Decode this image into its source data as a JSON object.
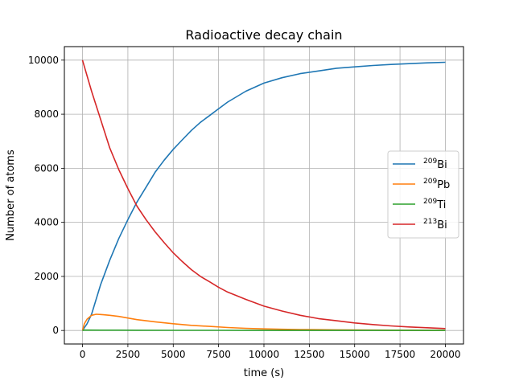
{
  "chart_data": {
    "type": "line",
    "title": "Radioactive decay chain",
    "xlabel": "time (s)",
    "ylabel": "Number of atoms",
    "xlim": [
      -1000,
      21000
    ],
    "ylim": [
      -500,
      10500
    ],
    "xticks": [
      0,
      2500,
      5000,
      7500,
      10000,
      12500,
      15000,
      17500,
      20000
    ],
    "yticks": [
      0,
      2000,
      4000,
      6000,
      8000,
      10000
    ],
    "grid": true,
    "legend_position": "right",
    "series": [
      {
        "name": "209Bi",
        "legend_mass": "209",
        "legend_symbol": "Bi",
        "color": "#1f77b4",
        "x": [
          0,
          250,
          500,
          1000,
          1500,
          2000,
          2500,
          3000,
          3500,
          4000,
          4500,
          5000,
          5500,
          6000,
          6500,
          7000,
          7500,
          8000,
          9000,
          10000,
          11000,
          12000,
          13000,
          14000,
          15000,
          16000,
          17000,
          18000,
          19000,
          20000
        ],
        "y": [
          0,
          250,
          600,
          1700,
          2600,
          3400,
          4100,
          4750,
          5300,
          5850,
          6300,
          6700,
          7050,
          7400,
          7700,
          7950,
          8200,
          8450,
          8850,
          9150,
          9350,
          9500,
          9600,
          9700,
          9750,
          9800,
          9840,
          9870,
          9900,
          9920
        ]
      },
      {
        "name": "209Pb",
        "legend_mass": "209",
        "legend_symbol": "Pb",
        "color": "#ff7f0e",
        "x": [
          0,
          100,
          250,
          500,
          750,
          1000,
          1500,
          2000,
          2500,
          3000,
          3500,
          4000,
          5000,
          6000,
          7000,
          8000,
          9000,
          10000,
          11000,
          12000,
          13000,
          14000,
          15000,
          16000,
          17000,
          18000,
          19000,
          20000
        ],
        "y": [
          0,
          250,
          420,
          560,
          600,
          590,
          560,
          520,
          460,
          400,
          360,
          320,
          250,
          190,
          150,
          110,
          80,
          60,
          45,
          35,
          28,
          22,
          18,
          15,
          12,
          10,
          8,
          6
        ]
      },
      {
        "name": "209Ti",
        "legend_mass": "209",
        "legend_symbol": "Ti",
        "color": "#2ca02c",
        "x": [
          0,
          100,
          1000,
          2000,
          3000,
          5000,
          7500,
          10000,
          15000,
          20000
        ],
        "y": [
          0,
          15,
          12,
          10,
          8,
          6,
          4,
          3,
          2,
          1
        ]
      },
      {
        "name": "213Bi",
        "legend_mass": "213",
        "legend_symbol": "Bi",
        "color": "#d62728",
        "x": [
          0,
          500,
          1000,
          1500,
          2000,
          2500,
          3000,
          3500,
          4000,
          4500,
          5000,
          5500,
          6000,
          6500,
          7000,
          7500,
          8000,
          9000,
          10000,
          11000,
          12000,
          13000,
          14000,
          15000,
          16000,
          17000,
          18000,
          19000,
          20000
        ],
        "y": [
          10000,
          8850,
          7800,
          6750,
          5950,
          5250,
          4600,
          4100,
          3650,
          3250,
          2870,
          2550,
          2250,
          2000,
          1800,
          1600,
          1420,
          1150,
          900,
          720,
          560,
          440,
          360,
          280,
          220,
          170,
          130,
          100,
          70
        ]
      }
    ]
  }
}
